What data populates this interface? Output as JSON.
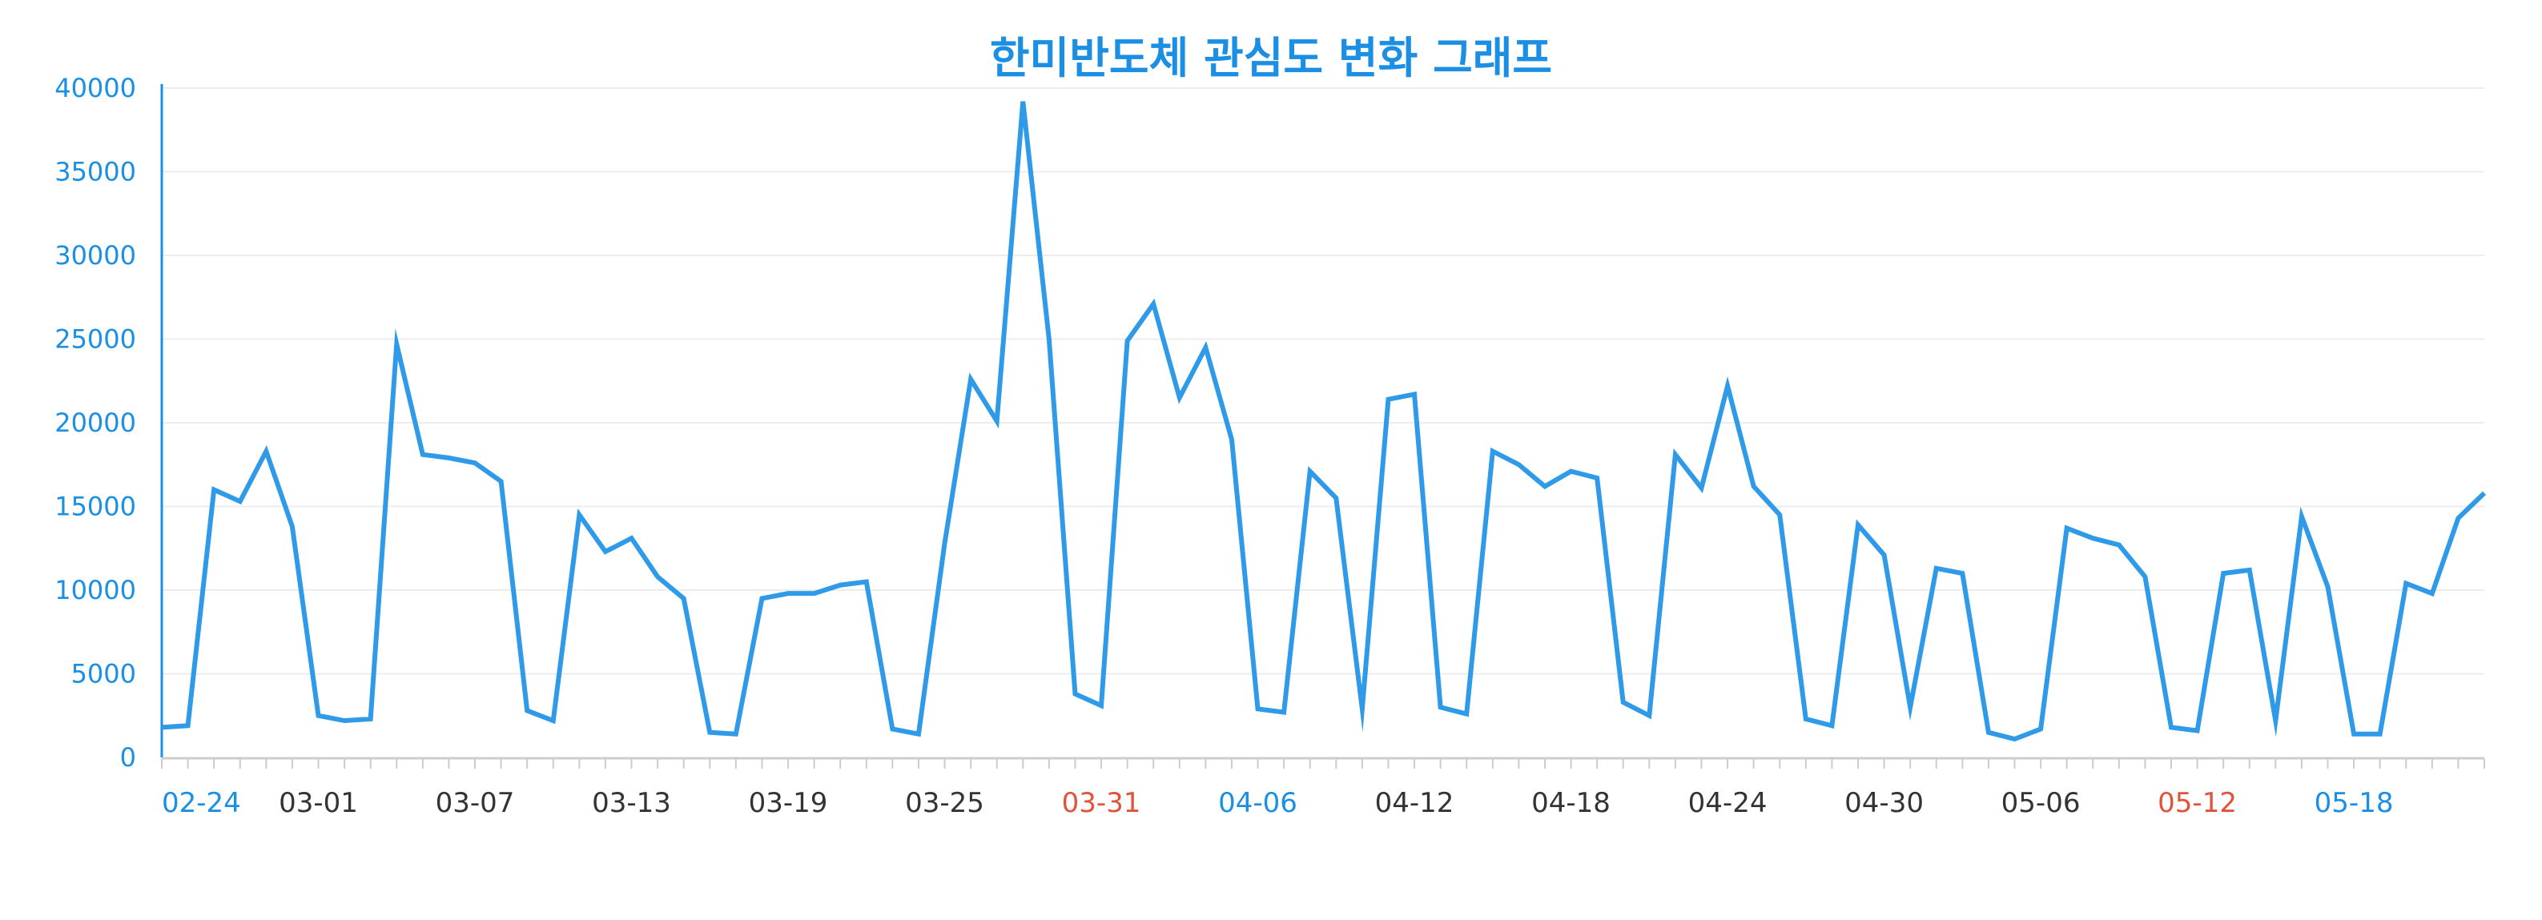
{
  "chart_data": {
    "type": "line",
    "title": "한미반도체 관심도 변화 그래프",
    "xlabel": "",
    "ylabel": "",
    "ylim": [
      0,
      40000
    ],
    "yticks": [
      "0",
      "5000",
      "10000",
      "15000",
      "20000",
      "25000",
      "30000",
      "35000",
      "40000"
    ],
    "grid": true,
    "xtick_labels": [
      {
        "label": "02-24",
        "color": "#1a8fe3"
      },
      {
        "label": "03-01",
        "color": "#333333"
      },
      {
        "label": "03-07",
        "color": "#333333"
      },
      {
        "label": "03-13",
        "color": "#333333"
      },
      {
        "label": "03-19",
        "color": "#333333"
      },
      {
        "label": "03-25",
        "color": "#333333"
      },
      {
        "label": "03-31",
        "color": "#e0533a"
      },
      {
        "label": "04-06",
        "color": "#1a8fe3"
      },
      {
        "label": "04-12",
        "color": "#333333"
      },
      {
        "label": "04-18",
        "color": "#333333"
      },
      {
        "label": "04-24",
        "color": "#333333"
      },
      {
        "label": "04-30",
        "color": "#333333"
      },
      {
        "label": "05-06",
        "color": "#333333"
      },
      {
        "label": "05-12",
        "color": "#e0533a"
      },
      {
        "label": "05-18",
        "color": "#1a8fe3"
      }
    ],
    "line_color": "#2f9ae8",
    "series": [
      {
        "values": [
          1800,
          1900,
          16000,
          15300,
          18300,
          13800,
          2500,
          2200,
          2300,
          24700,
          18100,
          17900,
          17600,
          16500,
          2800,
          2200,
          14500,
          12300,
          13100,
          10800,
          9500,
          1500,
          1400,
          9500,
          9800,
          9800,
          10300,
          10500,
          1700,
          1400,
          12800,
          22600,
          20100,
          39200,
          25000,
          3800,
          3100,
          24900,
          27100,
          21500,
          24500,
          19000,
          2900,
          2700,
          17100,
          15500,
          2900,
          21400,
          21700,
          3000,
          2600,
          18300,
          17500,
          16200,
          17100,
          16700,
          3300,
          2500,
          18100,
          16100,
          22200,
          16200,
          14500,
          2300,
          1900,
          13900,
          12100,
          3000,
          11300,
          11000,
          1500,
          1100,
          1700,
          13700,
          13100,
          12700,
          10800,
          1800,
          1600,
          11000,
          11200,
          2200,
          14400,
          10200,
          1400,
          1400,
          10400,
          9800,
          14300,
          15800
        ]
      }
    ]
  }
}
